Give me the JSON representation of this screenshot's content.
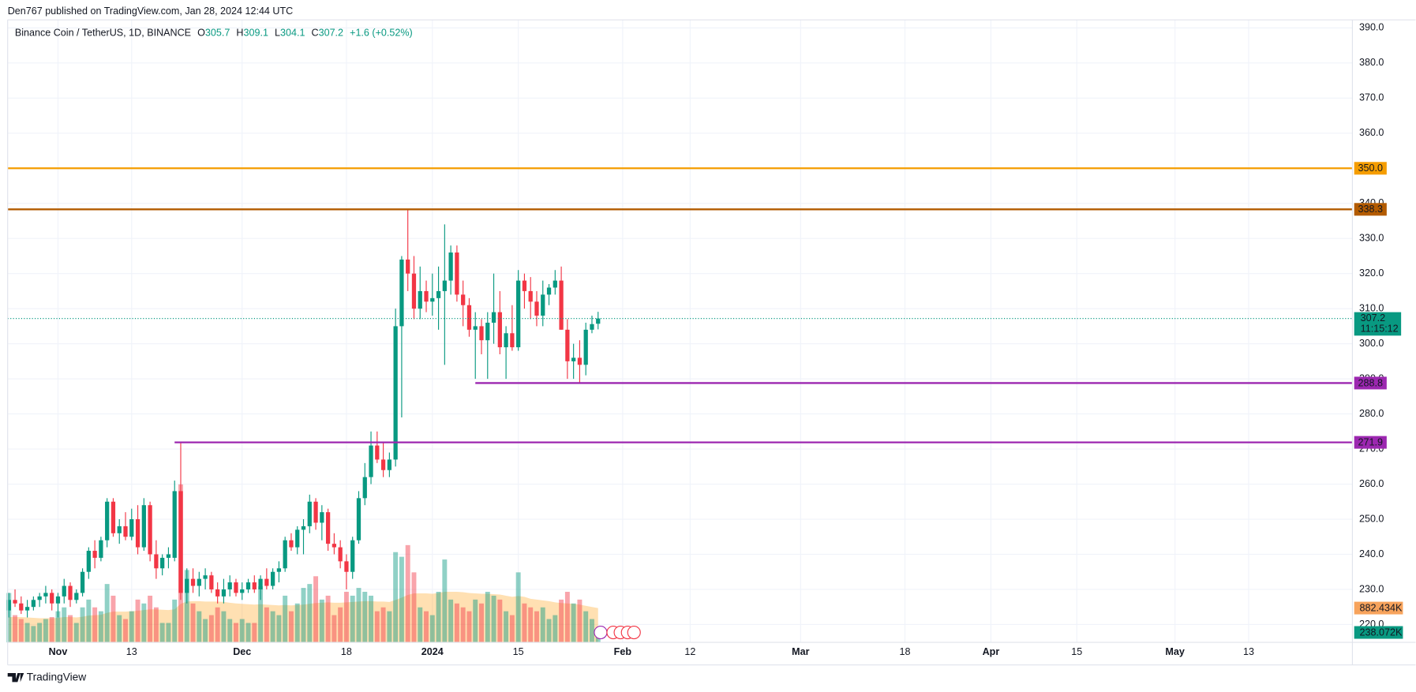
{
  "header": "Den767 published on TradingView.com, Jan 28, 2024 12:44 UTC",
  "footer": "TradingView",
  "chart_data": {
    "type": "candlestick",
    "symbol": "Binance Coin / TetherUS, 1D, BINANCE",
    "ohlc_labels": [
      "O",
      "H",
      "L",
      "C"
    ],
    "change": "+1.6 (+0.52%)",
    "countdown": "11:15:12",
    "up_color": "#089981",
    "down_color": "#f23645",
    "x": [
      "Oct 24",
      "Oct 25",
      "Oct 26",
      "Oct 27",
      "Oct 28",
      "Oct 29",
      "Oct 30",
      "Oct 31",
      "Nov 1",
      "Nov 2",
      "Nov 3",
      "Nov 4",
      "Nov 5",
      "Nov 6",
      "Nov 7",
      "Nov 8",
      "Nov 9",
      "Nov 10",
      "Nov 11",
      "Nov 12",
      "Nov 13",
      "Nov 14",
      "Nov 15",
      "Nov 16",
      "Nov 17",
      "Nov 18",
      "Nov 19",
      "Nov 20",
      "Nov 21",
      "Nov 22",
      "Nov 23",
      "Nov 24",
      "Nov 25",
      "Nov 26",
      "Nov 27",
      "Nov 28",
      "Nov 29",
      "Nov 30",
      "Dec 1",
      "Dec 2",
      "Dec 3",
      "Dec 4",
      "Dec 5",
      "Dec 6",
      "Dec 7",
      "Dec 8",
      "Dec 9",
      "Dec 10",
      "Dec 11",
      "Dec 12",
      "Dec 13",
      "Dec 14",
      "Dec 15",
      "Dec 16",
      "Dec 17",
      "Dec 18",
      "Dec 19",
      "Dec 20",
      "Dec 21",
      "Dec 22",
      "Dec 23",
      "Dec 24",
      "Dec 25",
      "Dec 26",
      "Dec 27",
      "Dec 28",
      "Dec 29",
      "Dec 30",
      "Dec 31",
      "Jan 1",
      "Jan 2",
      "Jan 3",
      "Jan 4",
      "Jan 5",
      "Jan 6",
      "Jan 7",
      "Jan 8",
      "Jan 9",
      "Jan 10",
      "Jan 11",
      "Jan 12",
      "Jan 13",
      "Jan 14",
      "Jan 15",
      "Jan 16",
      "Jan 17",
      "Jan 18",
      "Jan 19",
      "Jan 20",
      "Jan 21",
      "Jan 22",
      "Jan 23",
      "Jan 24",
      "Jan 25",
      "Jan 26",
      "Jan 27",
      "Jan 28"
    ],
    "open": [
      224,
      227,
      226,
      224,
      225,
      227,
      228,
      229,
      226,
      228,
      231,
      227,
      229,
      235,
      241,
      239,
      244,
      255,
      246,
      248,
      245,
      250,
      242,
      254,
      240,
      236,
      239,
      239,
      258,
      229,
      233,
      231,
      233,
      234,
      230,
      228,
      230,
      232,
      229,
      230,
      232,
      230,
      233,
      231,
      235,
      236,
      244,
      242,
      247,
      248,
      255,
      249,
      252,
      243,
      242,
      238,
      235,
      244,
      256,
      262,
      271,
      267,
      264,
      267,
      305,
      324,
      320,
      310,
      315,
      312,
      313,
      315,
      318,
      326,
      314,
      311,
      304,
      305,
      301,
      306,
      309,
      299,
      303,
      299,
      318,
      315,
      312,
      308,
      314,
      316,
      318,
      304,
      295,
      296,
      294,
      304,
      305.7
    ],
    "high": [
      229,
      230,
      228,
      227,
      228,
      229,
      231,
      230,
      229,
      233,
      232,
      230,
      236,
      242,
      244,
      245,
      256,
      256,
      250,
      252,
      253,
      254,
      256,
      255,
      244,
      240,
      242,
      261,
      271.9,
      236,
      236,
      235,
      236,
      235,
      232,
      233,
      234,
      233,
      232,
      233,
      234,
      234,
      236,
      236,
      238,
      245,
      246,
      248,
      250,
      257,
      256,
      254,
      253,
      246,
      244,
      240,
      245,
      258,
      266,
      275,
      275,
      272,
      269,
      310,
      325,
      338.3,
      325,
      322,
      318,
      320,
      322,
      334,
      328,
      328,
      318,
      313,
      309,
      307,
      309,
      320,
      315,
      305,
      311,
      321,
      320,
      319,
      315,
      318,
      317,
      321,
      322,
      307,
      300,
      301,
      306,
      308,
      309.1
    ],
    "low": [
      222,
      225,
      223,
      222,
      224,
      225,
      226,
      224,
      222,
      226,
      225,
      226,
      228,
      233,
      236,
      238,
      242,
      245,
      243,
      244,
      244,
      240,
      241,
      238,
      233,
      234,
      236,
      238,
      227,
      226,
      229,
      228,
      230,
      229,
      226,
      226,
      228,
      228,
      227,
      229,
      229,
      227,
      230,
      230,
      232,
      235,
      241,
      240,
      240,
      246,
      247,
      244,
      241,
      240,
      236,
      230,
      233,
      243,
      254,
      260,
      266,
      262,
      262,
      265,
      279,
      315,
      307,
      307,
      309,
      308,
      304,
      294,
      314,
      312,
      305,
      302,
      290,
      297,
      290,
      300,
      297,
      290,
      298,
      298,
      310,
      307,
      305,
      305,
      311,
      314,
      304,
      290,
      290,
      288.8,
      291,
      303,
      304.1
    ],
    "close": [
      227,
      226,
      224,
      225,
      227,
      228,
      229,
      226,
      228,
      231,
      227,
      229,
      235,
      241,
      239,
      244,
      255,
      246,
      248,
      245,
      250,
      242,
      254,
      240,
      236,
      239,
      240,
      258,
      229,
      233,
      231,
      233,
      234,
      230,
      228,
      230,
      232,
      229,
      230,
      232,
      230,
      233,
      231,
      235,
      236,
      244,
      242,
      247,
      248,
      255,
      249,
      252,
      243,
      242,
      238,
      235,
      244,
      256,
      262,
      271,
      267,
      264,
      267,
      305,
      324,
      320,
      310,
      315,
      312,
      313,
      315,
      318,
      326,
      314,
      311,
      304,
      305,
      301,
      306,
      309,
      299,
      303,
      299,
      318,
      315,
      312,
      308,
      314,
      316,
      318,
      304,
      295,
      296,
      294,
      304,
      305.6,
      307.2
    ],
    "volume": [
      1270,
      700,
      600,
      500,
      420,
      500,
      600,
      650,
      800,
      900,
      700,
      500,
      900,
      1100,
      900,
      800,
      1500,
      1200,
      700,
      600,
      800,
      1100,
      1000,
      1200,
      900,
      500,
      500,
      1100,
      4060,
      1860,
      1000,
      800,
      600,
      700,
      900,
      800,
      600,
      500,
      600,
      500,
      500,
      1440,
      900,
      800,
      700,
      1200,
      800,
      1000,
      1400,
      1500,
      1700,
      1100,
      1200,
      700,
      900,
      1300,
      1200,
      1400,
      1300,
      1200,
      800,
      900,
      800,
      2320,
      2200,
      2500,
      1800,
      900,
      800,
      700,
      1300,
      2130,
      1100,
      1000,
      900,
      800,
      1100,
      1000,
      1300,
      1200,
      1100,
      800,
      700,
      1800,
      1000,
      900,
      800,
      900,
      600,
      700,
      1100,
      1300,
      1000,
      1100,
      800,
      600,
      238.072
    ],
    "volume_ma": [
      650,
      650,
      650,
      640,
      630,
      620,
      620,
      620,
      630,
      650,
      650,
      640,
      660,
      690,
      700,
      710,
      760,
      790,
      790,
      790,
      800,
      810,
      830,
      850,
      850,
      840,
      830,
      850,
      990,
      1050,
      1060,
      1060,
      1050,
      1050,
      1050,
      1040,
      1020,
      1000,
      990,
      980,
      970,
      980,
      970,
      960,
      950,
      960,
      950,
      960,
      970,
      990,
      1010,
      1020,
      1030,
      1020,
      1020,
      1030,
      1040,
      1050,
      1060,
      1060,
      1050,
      1050,
      1040,
      1090,
      1150,
      1220,
      1260,
      1260,
      1260,
      1250,
      1270,
      1300,
      1300,
      1300,
      1290,
      1270,
      1260,
      1250,
      1250,
      1240,
      1230,
      1200,
      1170,
      1190,
      1170,
      1120,
      1100,
      1080,
      1060,
      1030,
      1010,
      1000,
      990,
      970,
      940,
      910,
      882.434
    ],
    "volume_label": "238.072K",
    "volume_ma_label": "882.434K",
    "y2lim": [
      0,
      16000
    ],
    "ylim": [
      214.9,
      392.3
    ],
    "yticks": [
      {
        "value": 220,
        "label": "220.0"
      },
      {
        "value": 230,
        "label": "230.0"
      },
      {
        "value": 240,
        "label": "240.0"
      },
      {
        "value": 250,
        "label": "250.0"
      },
      {
        "value": 260,
        "label": "260.0"
      },
      {
        "value": 270,
        "label": "270.0"
      },
      {
        "value": 280,
        "label": "280.0"
      },
      {
        "value": 290,
        "label": "290.0"
      },
      {
        "value": 300,
        "label": "300.0"
      },
      {
        "value": 310,
        "label": "310.0"
      },
      {
        "value": 320,
        "label": "320.0"
      },
      {
        "value": 330,
        "label": "330.0"
      },
      {
        "value": 340,
        "label": "340.0"
      },
      {
        "value": 350,
        "label": "350.0"
      },
      {
        "value": 360,
        "label": "360.0"
      },
      {
        "value": 370,
        "label": "370.0"
      },
      {
        "value": 380,
        "label": "380.0"
      },
      {
        "value": 390,
        "label": "390.0"
      }
    ],
    "xlim": [
      -0.2,
      218.9
    ],
    "xticks": [
      {
        "value": 8,
        "label": "Nov"
      },
      {
        "value": 20,
        "label": "13"
      },
      {
        "value": 38,
        "label": "Dec"
      },
      {
        "value": 55,
        "label": "18"
      },
      {
        "value": 69,
        "label": "2024"
      },
      {
        "value": 83,
        "label": "15"
      },
      {
        "value": 100,
        "label": "Feb"
      },
      {
        "value": 111,
        "label": "12"
      },
      {
        "value": 129,
        "label": "Mar"
      },
      {
        "value": 146,
        "label": "18"
      },
      {
        "value": 160,
        "label": "Apr"
      },
      {
        "value": 174,
        "label": "15"
      },
      {
        "value": 190,
        "label": "May"
      },
      {
        "value": 202,
        "label": "13"
      }
    ],
    "grid": true,
    "levels": [
      {
        "value": 350,
        "label": "350.0",
        "color": "#f59d00"
      },
      {
        "value": 338.3,
        "label": "338.3",
        "color": "#b35b00"
      },
      {
        "value": 288.8,
        "label": "288.8",
        "color": "#9c27b0",
        "start": "Jan 8"
      },
      {
        "value": 271.9,
        "label": "271.9",
        "color": "#9c27b0",
        "start": "Nov 20"
      }
    ]
  }
}
